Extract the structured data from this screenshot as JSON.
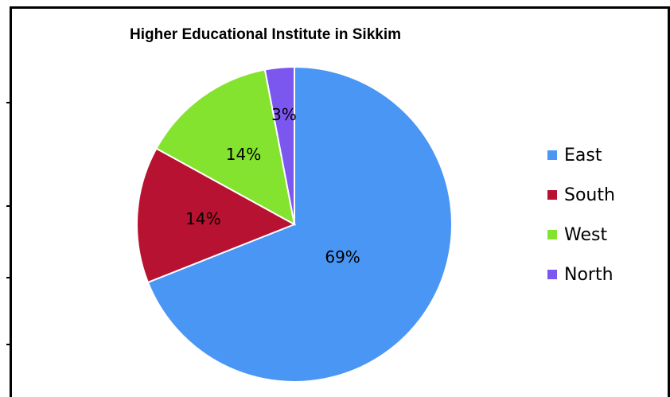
{
  "chart_data": {
    "type": "pie",
    "title": "Higher Educational Institute in Sikkim",
    "categories": [
      "East",
      "South",
      "West",
      "North"
    ],
    "values": [
      69,
      14,
      14,
      3
    ],
    "labels": [
      "69%",
      "14%",
      "14%",
      "3%"
    ],
    "colors": [
      "#4a96f5",
      "#b81232",
      "#84e32e",
      "#7b57ef"
    ],
    "legend_position": "right"
  }
}
